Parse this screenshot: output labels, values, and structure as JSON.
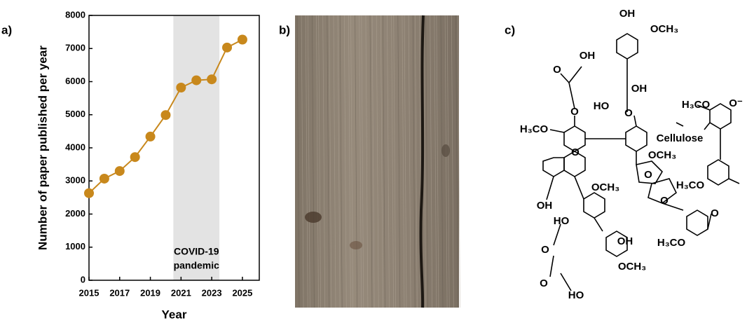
{
  "panel_labels": [
    "a)",
    "b)",
    "c)"
  ],
  "chart_data": {
    "type": "line",
    "x_label": "Year",
    "y_label": "Number of paper published per year",
    "x": [
      2015,
      2016,
      2017,
      2018,
      2019,
      2020,
      2021,
      2022,
      2023,
      2024,
      2025
    ],
    "series": [
      {
        "color": "#c8881c",
        "values": [
          2630,
          3070,
          3300,
          3720,
          4340,
          4990,
          5820,
          6040,
          6070,
          7030,
          7270
        ]
      }
    ],
    "xlim": [
      2015,
      2026.1
    ],
    "xticks": [
      2015,
      2017,
      2019,
      2021,
      2023,
      2025
    ],
    "ylim": [
      0,
      8000
    ],
    "yticks": [
      0,
      1000,
      2000,
      3000,
      4000,
      5000,
      6000,
      7000,
      8000
    ],
    "shaded_span": [
      2020.5,
      2023.5
    ],
    "shade_color": "#e3e3e3",
    "annotation_lines": [
      "COVID-19",
      "pandemic"
    ]
  },
  "structure": {
    "labels": [
      "OH",
      "OCH₃",
      "O",
      "OH",
      "OH",
      "HO",
      "O",
      "O",
      "H₃CO",
      "H₃CO",
      "O⁻",
      "Cellulose",
      "OCH₃",
      "O",
      "OCH₃",
      "H₃CO",
      "OH",
      "O",
      "O",
      "HO",
      "O",
      "O",
      "OH",
      "H₃CO",
      "OCH₃",
      "O",
      "HO"
    ]
  }
}
